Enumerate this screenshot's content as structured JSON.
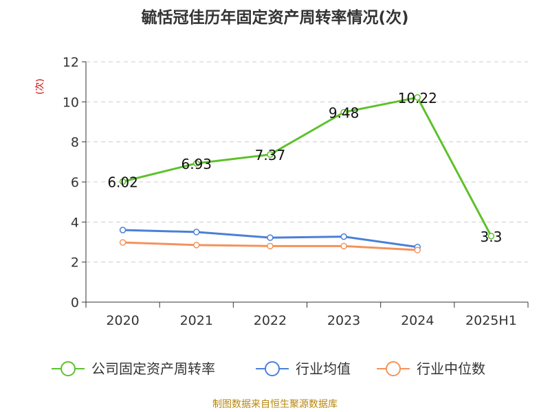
{
  "chart_data": {
    "type": "line",
    "title": "毓恬冠佳历年固定资产周转率情况(次)",
    "ylabel": "(次)",
    "xlabel": "",
    "categories": [
      "2020",
      "2021",
      "2022",
      "2023",
      "2024",
      "2025H1"
    ],
    "ylim": [
      0,
      12
    ],
    "yticks": [
      0,
      2,
      4,
      6,
      8,
      10,
      12
    ],
    "grid": true,
    "legend_position": "bottom",
    "series": [
      {
        "name": "公司固定资产周转率",
        "color": "#5dc12a",
        "values": [
          6.02,
          6.93,
          7.37,
          9.48,
          10.22,
          3.3
        ],
        "labels": [
          "6.02",
          "6.93",
          "7.37",
          "9.48",
          "10.22",
          "3.3"
        ]
      },
      {
        "name": "行业均值",
        "color": "#4a7fd8",
        "values": [
          3.6,
          3.5,
          3.22,
          3.27,
          2.75,
          null
        ]
      },
      {
        "name": "行业中位数",
        "color": "#f4925b",
        "values": [
          2.98,
          2.85,
          2.8,
          2.8,
          2.6,
          null
        ]
      }
    ]
  },
  "source": "制图数据来自恒生聚源数据库"
}
